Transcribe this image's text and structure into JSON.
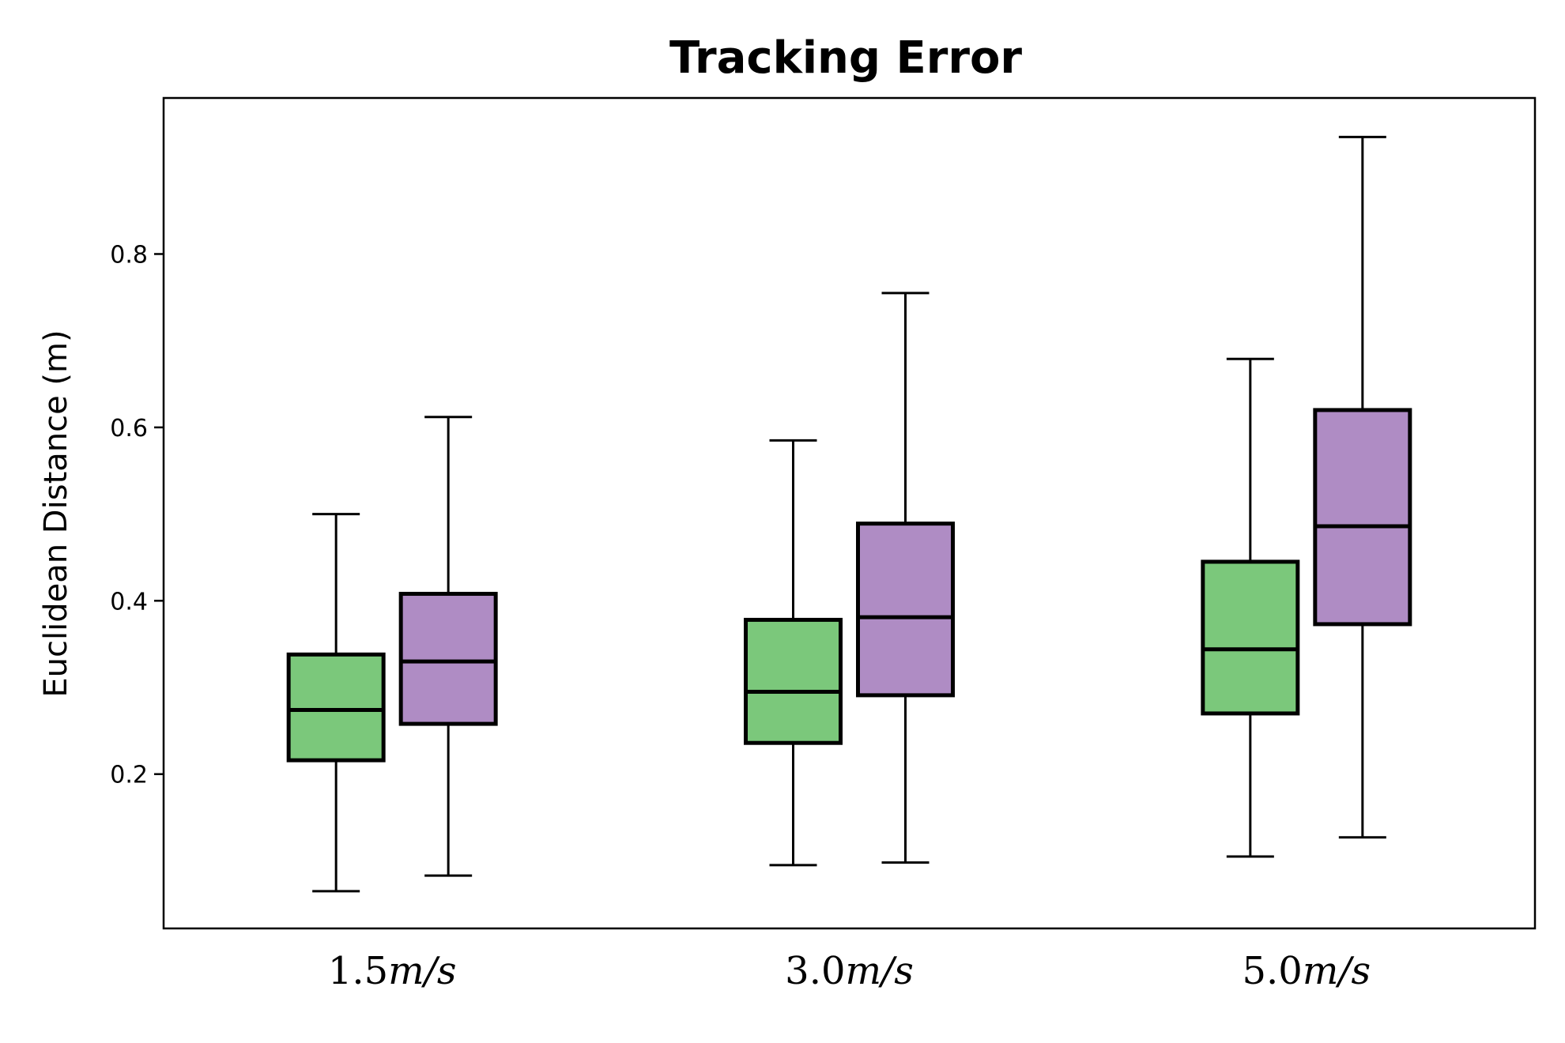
{
  "chart_data": {
    "type": "box",
    "title": "Tracking Error",
    "xlabel": "",
    "ylabel": "Euclidean Distance (m)",
    "categories": [
      {
        "value": "1.5",
        "unit": "m/s"
      },
      {
        "value": "3.0",
        "unit": "m/s"
      },
      {
        "value": "5.0",
        "unit": "m/s"
      }
    ],
    "yticks": [
      "0.2",
      "0.4",
      "0.6",
      "0.8"
    ],
    "ylim": [
      0.022,
      0.98
    ],
    "grid": false,
    "legend": "none",
    "series": [
      {
        "color": "#7bc87b",
        "boxes": [
          {
            "whisker_low": 0.065,
            "q1": 0.216,
            "median": 0.274,
            "q3": 0.338,
            "whisker_high": 0.5
          },
          {
            "whisker_low": 0.095,
            "q1": 0.236,
            "median": 0.295,
            "q3": 0.378,
            "whisker_high": 0.585
          },
          {
            "whisker_low": 0.105,
            "q1": 0.27,
            "median": 0.344,
            "q3": 0.445,
            "whisker_high": 0.679
          }
        ]
      },
      {
        "color": "#af8cc4",
        "boxes": [
          {
            "whisker_low": 0.083,
            "q1": 0.258,
            "median": 0.33,
            "q3": 0.408,
            "whisker_high": 0.612
          },
          {
            "whisker_low": 0.098,
            "q1": 0.291,
            "median": 0.381,
            "q3": 0.489,
            "whisker_high": 0.755
          },
          {
            "whisker_low": 0.127,
            "q1": 0.373,
            "median": 0.486,
            "q3": 0.62,
            "whisker_high": 0.935
          }
        ]
      }
    ]
  }
}
